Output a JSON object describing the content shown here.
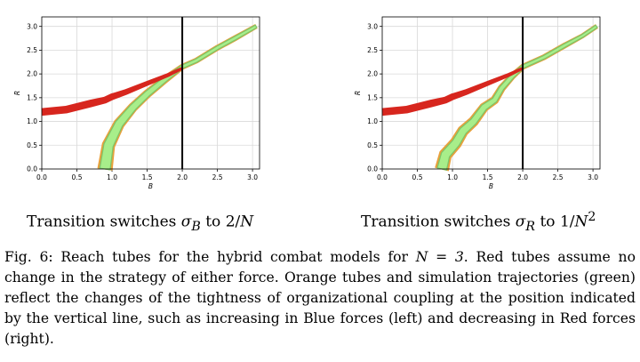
{
  "figure": {
    "label": "Fig. 6:",
    "caption_lead": "Reach tubes for the hybrid combat models for",
    "caption_math": "N = 3",
    "caption_rest": ". Red tubes assume no change in the strategy of either force. Orange tubes and simulation trajectories (green) reflect the changes of the tightness of organizational coupling at the position indicated by the vertical line, such as increasing in Blue forces (left) and decreasing in Red forces (right)."
  },
  "panels": [
    {
      "subcaption_text": "Transition switches",
      "subcaption_sym": "σ",
      "subcaption_sub": "B",
      "subcaption_to": "to",
      "subcaption_val": "2/",
      "subcaption_N": "N",
      "subcaption_exp": ""
    },
    {
      "subcaption_text": "Transition switches",
      "subcaption_sym": "σ",
      "subcaption_sub": "R",
      "subcaption_to": "to",
      "subcaption_val": "1/",
      "subcaption_N": "N",
      "subcaption_exp": "2"
    }
  ],
  "colors": {
    "red_tube": "#d7261e",
    "orange_tube": "#e8a03c",
    "green_traj": "#a8ee8a",
    "grid": "#d9d9d9",
    "switch_line": "#000000"
  },
  "chart_data": [
    {
      "type": "area",
      "xlabel": "B",
      "ylabel": "R",
      "xlim": [
        0.0,
        3.1
      ],
      "ylim": [
        0.0,
        3.2
      ],
      "xticks": [
        "0.0",
        "0.5",
        "1.0",
        "1.5",
        "2.0",
        "2.5",
        "3.0"
      ],
      "yticks": [
        "0.0",
        "0.5",
        "1.0",
        "1.5",
        "2.0",
        "2.5",
        "3.0"
      ],
      "grid": true,
      "switch_x": 2.0,
      "red_tube": {
        "center": [
          [
            0.0,
            1.2
          ],
          [
            0.35,
            1.25
          ],
          [
            0.7,
            1.38
          ],
          [
            0.9,
            1.45
          ],
          [
            1.0,
            1.52
          ],
          [
            1.2,
            1.62
          ],
          [
            1.5,
            1.8
          ],
          [
            1.8,
            1.98
          ],
          [
            2.0,
            2.12
          ]
        ],
        "halfwidth": [
          0.08,
          0.08,
          0.08,
          0.07,
          0.07,
          0.06,
          0.05,
          0.04,
          0.03
        ]
      },
      "orange_tube": {
        "center": [
          [
            0.9,
            0.0
          ],
          [
            0.95,
            0.5
          ],
          [
            1.1,
            0.95
          ],
          [
            1.3,
            1.3
          ],
          [
            1.5,
            1.58
          ],
          [
            1.75,
            1.88
          ],
          [
            2.0,
            2.15
          ],
          [
            2.2,
            2.28
          ],
          [
            2.5,
            2.55
          ],
          [
            2.75,
            2.75
          ],
          [
            3.05,
            3.0
          ]
        ],
        "halfwidth": [
          0.15,
          0.13,
          0.11,
          0.09,
          0.08,
          0.07,
          0.05,
          0.05,
          0.05,
          0.05,
          0.04
        ]
      },
      "green_tube": {
        "center": [
          [
            0.9,
            0.0
          ],
          [
            0.95,
            0.5
          ],
          [
            1.1,
            0.95
          ],
          [
            1.3,
            1.3
          ],
          [
            1.5,
            1.58
          ],
          [
            1.75,
            1.88
          ],
          [
            2.0,
            2.15
          ],
          [
            2.2,
            2.28
          ],
          [
            2.5,
            2.55
          ],
          [
            2.75,
            2.75
          ],
          [
            3.05,
            3.0
          ]
        ],
        "halfwidth": [
          0.11,
          0.1,
          0.085,
          0.07,
          0.06,
          0.05,
          0.035,
          0.035,
          0.035,
          0.035,
          0.03
        ]
      }
    },
    {
      "type": "area",
      "xlabel": "B",
      "ylabel": "R",
      "xlim": [
        0.0,
        3.1
      ],
      "ylim": [
        0.0,
        3.2
      ],
      "xticks": [
        "0.0",
        "0.5",
        "1.0",
        "1.5",
        "2.0",
        "2.5",
        "3.0"
      ],
      "yticks": [
        "0.0",
        "0.5",
        "1.0",
        "1.5",
        "2.0",
        "2.5",
        "3.0"
      ],
      "grid": true,
      "switch_x": 2.0,
      "red_tube": {
        "center": [
          [
            0.0,
            1.2
          ],
          [
            0.35,
            1.25
          ],
          [
            0.7,
            1.38
          ],
          [
            0.9,
            1.45
          ],
          [
            1.0,
            1.52
          ],
          [
            1.2,
            1.62
          ],
          [
            1.5,
            1.8
          ],
          [
            1.8,
            1.98
          ],
          [
            2.0,
            2.12
          ]
        ],
        "halfwidth": [
          0.08,
          0.08,
          0.08,
          0.07,
          0.07,
          0.06,
          0.05,
          0.04,
          0.03
        ]
      },
      "orange_tube": {
        "center": [
          [
            0.85,
            0.0
          ],
          [
            0.9,
            0.3
          ],
          [
            1.05,
            0.55
          ],
          [
            1.15,
            0.8
          ],
          [
            1.3,
            1.0
          ],
          [
            1.45,
            1.3
          ],
          [
            1.6,
            1.45
          ],
          [
            1.7,
            1.7
          ],
          [
            1.85,
            1.95
          ],
          [
            2.0,
            2.15
          ],
          [
            2.3,
            2.35
          ],
          [
            2.6,
            2.6
          ],
          [
            2.85,
            2.8
          ],
          [
            3.05,
            3.0
          ]
        ],
        "halfwidth": [
          0.14,
          0.13,
          0.12,
          0.11,
          0.1,
          0.09,
          0.08,
          0.07,
          0.06,
          0.05,
          0.05,
          0.05,
          0.04,
          0.04
        ]
      },
      "green_tube": {
        "center": [
          [
            0.85,
            0.0
          ],
          [
            0.9,
            0.3
          ],
          [
            1.05,
            0.55
          ],
          [
            1.15,
            0.8
          ],
          [
            1.3,
            1.0
          ],
          [
            1.45,
            1.3
          ],
          [
            1.6,
            1.45
          ],
          [
            1.7,
            1.7
          ],
          [
            1.85,
            1.95
          ],
          [
            2.0,
            2.15
          ],
          [
            2.3,
            2.35
          ],
          [
            2.6,
            2.6
          ],
          [
            2.85,
            2.8
          ],
          [
            3.05,
            3.0
          ]
        ],
        "halfwidth": [
          0.1,
          0.095,
          0.085,
          0.08,
          0.07,
          0.065,
          0.055,
          0.05,
          0.045,
          0.035,
          0.035,
          0.035,
          0.03,
          0.03
        ]
      }
    }
  ]
}
